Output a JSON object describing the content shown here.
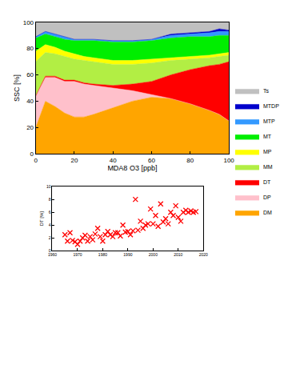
{
  "chart_data": [
    {
      "type": "area",
      "stacked": true,
      "x_label": "MDA8 O3 [ppb]",
      "y_label": "SSC [%]",
      "x": [
        0,
        5,
        10,
        15,
        20,
        25,
        30,
        40,
        50,
        60,
        70,
        80,
        90,
        95,
        100
      ],
      "xlim": [
        0,
        100
      ],
      "xticks": [
        0,
        20,
        40,
        60,
        80,
        100
      ],
      "ylim": [
        0,
        100
      ],
      "yticks": [
        0,
        20,
        40,
        60,
        80,
        100
      ],
      "grid": false,
      "legend": "right",
      "series": [
        {
          "name": "DM",
          "color": "#ffa500",
          "values": [
            20,
            40,
            36,
            31,
            28,
            28,
            30,
            35,
            40,
            43,
            42,
            38,
            33,
            30,
            25
          ]
        },
        {
          "name": "DP",
          "color": "#ffc0cb",
          "values": [
            24,
            18,
            22,
            24,
            27,
            25,
            22,
            15,
            8,
            2,
            0,
            0,
            0,
            0,
            0
          ]
        },
        {
          "name": "DT",
          "color": "#ff0000",
          "values": [
            0,
            1,
            1,
            1,
            1,
            1,
            1,
            2,
            5,
            10,
            18,
            26,
            34,
            38,
            45
          ]
        },
        {
          "name": "MM",
          "color": "#b2ee44",
          "values": [
            26,
            18,
            17,
            18,
            16,
            17,
            17,
            16,
            15,
            14,
            11,
            8,
            6,
            6,
            5
          ]
        },
        {
          "name": "MP",
          "color": "#ffff00",
          "values": [
            8,
            6,
            5,
            4,
            4,
            3,
            3,
            3,
            3,
            3,
            2,
            2,
            2,
            2,
            2
          ]
        },
        {
          "name": "MT",
          "color": "#00ee00",
          "values": [
            10,
            8,
            8,
            9,
            10,
            12,
            13,
            14,
            14,
            14,
            15,
            15,
            14,
            14,
            13
          ]
        },
        {
          "name": "MTP",
          "color": "#3399ff",
          "values": [
            1,
            2,
            2,
            2,
            1,
            1,
            1,
            1,
            1,
            1,
            2,
            2,
            3,
            3,
            3
          ]
        },
        {
          "name": "MTDP",
          "color": "#0000cc",
          "values": [
            0,
            0,
            0,
            0,
            0,
            0,
            0,
            0,
            0,
            0,
            1,
            1,
            1,
            2,
            1
          ]
        },
        {
          "name": "Ts",
          "color": "#c0c0c0",
          "values": [
            11,
            7,
            9,
            11,
            13,
            13,
            13,
            14,
            14,
            13,
            9,
            8,
            7,
            5,
            6
          ]
        }
      ]
    },
    {
      "type": "scatter",
      "y_label": "DT [%]",
      "marker": "x",
      "color": "#ff0000",
      "grid": false,
      "x": [
        1965,
        1966,
        1967,
        1968,
        1969,
        1970,
        1971,
        1972,
        1973,
        1974,
        1975,
        1976,
        1977,
        1978,
        1979,
        1980,
        1981,
        1982,
        1983,
        1984,
        1985,
        1986,
        1987,
        1988,
        1989,
        1990,
        1991,
        1992,
        1993,
        1994,
        1995,
        1996,
        1997,
        1998,
        1999,
        2000,
        2001,
        2002,
        2003,
        2004,
        2005,
        2006,
        2007,
        2008,
        2009,
        2010,
        2011,
        2012,
        2013,
        2014,
        2015,
        2016,
        2017
      ],
      "values": [
        2.5,
        1.5,
        2.8,
        1.6,
        1.4,
        1.0,
        1.5,
        2.0,
        2.4,
        1.5,
        2.2,
        1.7,
        2.6,
        3.5,
        2.2,
        1.5,
        2.5,
        3.0,
        2.5,
        2.2,
        2.8,
        2.8,
        2.3,
        4.0,
        2.9,
        3.0,
        2.5,
        3.1,
        8.0,
        3.2,
        4.6,
        3.5,
        4.0,
        4.2,
        6.5,
        4.2,
        5.5,
        3.8,
        7.3,
        4.5,
        5.0,
        4.2,
        6.0,
        5.5,
        7.0,
        5.2,
        4.6,
        6.0,
        6.3,
        6.0,
        6.2,
        6.0,
        6.1
      ],
      "xlim": [
        1960,
        2020
      ],
      "xticks": [
        1960,
        1970,
        1980,
        1990,
        2000,
        2010,
        2020
      ],
      "ylim": [
        0,
        10
      ],
      "yticks": [
        0,
        2,
        4,
        6,
        8,
        10
      ]
    }
  ]
}
